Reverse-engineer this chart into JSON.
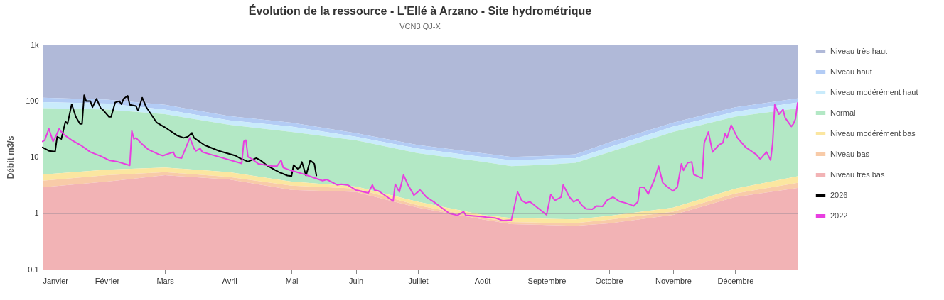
{
  "chart_data": {
    "type": "area",
    "title": "Évolution de la ressource - L'Ellé à Arzano - Site hydrométrique",
    "subtitle": "VCN3 QJ-X",
    "ylabel": "Débit m3/s",
    "log": "y",
    "grid": "y",
    "legend": "right",
    "xlim": [
      "--01-01",
      "--12-31"
    ],
    "xticks": [
      {
        "value": "--01-01",
        "label": "Janvier"
      },
      {
        "value": "--02-01",
        "label": "Février"
      },
      {
        "value": "--03-01",
        "label": "Mars"
      },
      {
        "value": "--04-01",
        "label": "Avril"
      },
      {
        "value": "--05-01",
        "label": "Mai"
      },
      {
        "value": "--06-01",
        "label": "Juin"
      },
      {
        "value": "--07-01",
        "label": "Juillet"
      },
      {
        "value": "--08-01",
        "label": "Août"
      },
      {
        "value": "--09-01",
        "label": "Septembre"
      },
      {
        "value": "--10-01",
        "label": "Octobre"
      },
      {
        "value": "--11-01",
        "label": "Novembre"
      },
      {
        "value": "--12-01",
        "label": "Décembre"
      }
    ],
    "ylim": [
      0.1,
      1000
    ],
    "yticks": [
      0.1,
      1,
      10,
      100,
      {
        "value": 1000,
        "label": "1k"
      }
    ],
    "x": [
      "--01-01",
      "--02-01",
      "--03-01",
      "--04-01",
      "--05-01",
      "--06-01",
      "--07-01",
      "--08-01",
      "--08-15",
      "--09-01",
      "--09-15",
      "--10-01",
      "--11-01",
      "--12-01",
      "--12-31"
    ],
    "series": [
      {
        "name": "Niveau très haut",
        "color": "#b0b9d8",
        "values": [
          1000,
          1000,
          1000,
          1000,
          1000,
          1000,
          1000,
          1000,
          1000,
          1000,
          1000,
          1000,
          1000,
          1000,
          1000
        ]
      },
      {
        "name": "Niveau haut",
        "color": "#b3ccf5",
        "values": [
          114,
          105,
          85,
          53.5,
          41,
          26.6,
          16.4,
          11.7,
          10.1,
          10.5,
          11.2,
          18.1,
          41,
          77,
          111
        ]
      },
      {
        "name": "Niveau modérément haut",
        "color": "#c9ebfb",
        "values": [
          95,
          90,
          70,
          45,
          35,
          23,
          14.2,
          10.1,
          8.8,
          9.2,
          9.6,
          14.9,
          35,
          64,
          94
        ]
      },
      {
        "name": "Normal",
        "color": "#b3e8c5",
        "values": [
          74,
          70,
          57.8,
          37.4,
          28,
          20,
          11.7,
          8.3,
          6.9,
          7.3,
          7.9,
          12.2,
          28,
          52.5,
          73.5
        ]
      },
      {
        "name": "Niveau modérément bas",
        "color": "#fbe6a0",
        "values": [
          4.9,
          5.95,
          6.5,
          5.4,
          3.66,
          3.0,
          1.6,
          0.94,
          0.82,
          0.8,
          0.78,
          0.9,
          1.26,
          2.74,
          4.56
        ]
      },
      {
        "name": "Niveau bas",
        "color": "#f8cba8",
        "values": [
          3.8,
          4.75,
          5.4,
          4.43,
          3.1,
          2.76,
          1.39,
          0.83,
          0.7,
          0.68,
          0.67,
          0.77,
          1.07,
          2.26,
          3.5
        ]
      },
      {
        "name": "Niveau très bas",
        "color": "#f2b3b5",
        "values": [
          2.9,
          3.66,
          4.75,
          4.0,
          2.6,
          2.4,
          1.26,
          0.78,
          0.64,
          0.62,
          0.6,
          0.66,
          0.94,
          1.95,
          2.82
        ]
      },
      {
        "name": "2026",
        "type": "line",
        "color": "#000000",
        "x": [
          "--01-01",
          "--01-04",
          "--01-07",
          "--01-08",
          "--01-10",
          "--01-12",
          "--01-13",
          "--01-15",
          "--01-17",
          "--01-19",
          "--01-20",
          "--01-21",
          "--01-22",
          "--01-24",
          "--01-25",
          "--01-27",
          "--01-29",
          "--01-30",
          "--02-02",
          "--02-03",
          "--02-05",
          "--02-07",
          "--02-08",
          "--02-09",
          "--02-11",
          "--02-12",
          "--02-15",
          "--02-16",
          "--02-18",
          "--02-20",
          "--02-25",
          "--03-02",
          "--03-07",
          "--03-10",
          "--03-12",
          "--03-14",
          "--03-15",
          "--03-20",
          "--03-27",
          "--04-04",
          "--04-06",
          "--04-10",
          "--04-14",
          "--04-16",
          "--04-19",
          "--04-23",
          "--04-25",
          "--04-29",
          "--05-01",
          "--05-02",
          "--05-04",
          "--05-05",
          "--05-06",
          "--05-08",
          "--05-10",
          "--05-12",
          "--05-13"
        ],
        "values": [
          14.9,
          12.9,
          12.5,
          23,
          21,
          43,
          39,
          87,
          52,
          39,
          39,
          126,
          99,
          99,
          77,
          109,
          74,
          70,
          52,
          52,
          94,
          99,
          87,
          109,
          123,
          85,
          81,
          67,
          114,
          77,
          41,
          32,
          24,
          22,
          23,
          27,
          22,
          16.4,
          12.9,
          10.6,
          9.6,
          8.3,
          9.6,
          8.8,
          7.2,
          5.9,
          5.4,
          4.7,
          4.6,
          7.2,
          6.2,
          6.5,
          8.2,
          4.7,
          8.8,
          7.6,
          4.7
        ]
      },
      {
        "name": "2022",
        "type": "line",
        "color": "#e83ee0",
        "x": [
          "--01-01",
          "--01-02",
          "--01-04",
          "--01-06",
          "--01-07",
          "--01-09",
          "--01-10",
          "--01-12",
          "--01-15",
          "--01-20",
          "--01-24",
          "--01-29",
          "--02-02",
          "--02-06",
          "--02-12",
          "--02-13",
          "--02-14",
          "--02-15",
          "--02-18",
          "--02-21",
          "--02-26",
          "--02-28",
          "--03-05",
          "--03-06",
          "--03-09",
          "--03-13",
          "--03-15",
          "--03-16",
          "--03-18",
          "--03-19",
          "--03-27",
          "--04-07",
          "--04-08",
          "--04-09",
          "--04-10",
          "--04-12",
          "--04-15",
          "--04-22",
          "--04-24",
          "--04-26",
          "--04-27",
          "--04-30",
          "--05-06",
          "--05-11",
          "--05-16",
          "--05-18",
          "--05-23",
          "--05-25",
          "--05-28",
          "--06-01",
          "--06-07",
          "--06-09",
          "--06-10",
          "--06-12",
          "--06-19",
          "--06-20",
          "--06-22",
          "--06-24",
          "--06-26",
          "--06-29",
          "--07-02",
          "--07-05",
          "--07-09",
          "--07-16",
          "--07-20",
          "--07-23",
          "--07-24",
          "--08-01",
          "--08-03",
          "--08-07",
          "--08-11",
          "--08-15",
          "--08-18",
          "--08-20",
          "--08-22",
          "--08-24",
          "--09-01",
          "--09-03",
          "--09-05",
          "--09-08",
          "--09-09",
          "--09-12",
          "--09-14",
          "--09-16",
          "--09-18",
          "--09-20",
          "--09-23",
          "--09-25",
          "--09-28",
          "--09-30",
          "--10-03",
          "--10-06",
          "--10-09",
          "--10-13",
          "--10-15",
          "--10-16",
          "--10-18",
          "--10-20",
          "--10-23",
          "--10-25",
          "--10-27",
          "--10-29",
          "--11-01",
          "--11-03",
          "--11-05",
          "--11-06",
          "--11-08",
          "--11-10",
          "--11-11",
          "--11-15",
          "--11-16",
          "--11-18",
          "--11-20",
          "--11-23",
          "--11-25",
          "--11-26",
          "--11-27",
          "--11-29",
          "--12-02",
          "--12-06",
          "--12-11",
          "--12-13",
          "--12-16",
          "--12-18",
          "--12-19",
          "--12-20",
          "--12-22",
          "--12-24",
          "--12-25",
          "--12-28",
          "--12-29",
          "--12-30",
          "--12-31"
        ],
        "values": [
          19,
          20,
          32,
          19,
          22,
          32,
          28,
          24,
          20,
          15.7,
          12.3,
          10.4,
          8.8,
          8.3,
          7.1,
          29,
          21,
          22,
          17,
          13.6,
          11.2,
          10.6,
          12.3,
          10.1,
          9.6,
          22,
          14.2,
          12.9,
          14.2,
          12.3,
          10.1,
          7.7,
          19,
          20,
          10.1,
          9.2,
          7.6,
          6.9,
          6.9,
          8.8,
          6.5,
          5.9,
          5.1,
          4.4,
          3.8,
          4.0,
          3.2,
          3.3,
          3.2,
          2.6,
          2.3,
          3.2,
          2.6,
          2.5,
          1.65,
          3.3,
          2.4,
          4.8,
          3.3,
          2.1,
          2.6,
          1.95,
          1.56,
          1.0,
          0.92,
          1.07,
          0.92,
          0.87,
          0.85,
          0.83,
          0.74,
          0.76,
          2.4,
          1.69,
          1.53,
          1.6,
          0.94,
          2.15,
          1.69,
          1.95,
          3.2,
          1.95,
          1.6,
          1.75,
          1.39,
          1.2,
          1.18,
          1.35,
          1.33,
          1.69,
          1.95,
          1.64,
          1.53,
          1.35,
          1.6,
          2.9,
          2.9,
          2.2,
          4.0,
          6.9,
          3.5,
          3.0,
          2.5,
          2.9,
          7.6,
          5.8,
          7.9,
          8.2,
          4.9,
          4.2,
          18,
          28,
          12.3,
          16.4,
          18,
          26,
          22,
          37,
          22,
          14.9,
          11.2,
          9.2,
          12.3,
          8.8,
          18,
          85,
          58,
          70,
          50,
          35,
          39,
          48,
          92
        ]
      }
    ]
  }
}
